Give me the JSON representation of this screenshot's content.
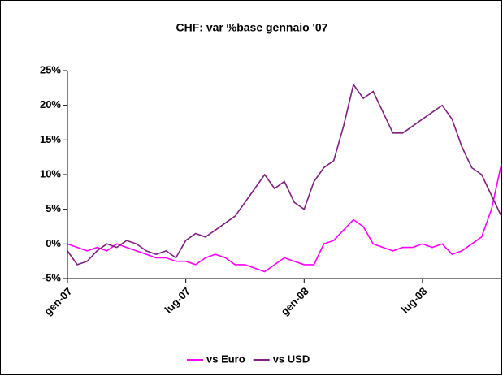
{
  "chart_data": {
    "type": "line",
    "title": "CHF: var %base gennaio '07",
    "categories": [
      "gen-07",
      null,
      null,
      null,
      null,
      null,
      null,
      null,
      null,
      null,
      null,
      null,
      "lug-07",
      null,
      null,
      null,
      null,
      null,
      null,
      null,
      null,
      null,
      null,
      null,
      "gen-08",
      null,
      null,
      null,
      null,
      null,
      null,
      null,
      null,
      null,
      null,
      null,
      "lug-08",
      null,
      null,
      null,
      null,
      null,
      null,
      null,
      null
    ],
    "series": [
      {
        "name": "vs Euro",
        "color": "#ff00ff",
        "values": [
          0,
          -0.5,
          -1,
          -0.5,
          -1,
          0,
          -0.5,
          -1,
          -1.5,
          -2,
          -2,
          -2.5,
          -2.5,
          -3,
          -2,
          -1.5,
          -2,
          -3,
          -3,
          -3.5,
          -4,
          -3,
          -2,
          -2.5,
          -3,
          -3,
          0,
          0.5,
          2,
          3.5,
          2.5,
          0,
          -0.5,
          -1,
          -0.5,
          -0.5,
          0,
          -0.5,
          0,
          -1.5,
          -1,
          0,
          1,
          5,
          11.5
        ]
      },
      {
        "name": "vs USD",
        "color": "#7f1f7f",
        "values": [
          -1,
          -3,
          -2.5,
          -1,
          0,
          -0.5,
          0.5,
          0,
          -1,
          -1.5,
          -1,
          -2,
          0.5,
          1.5,
          1,
          2,
          3,
          4,
          6,
          8,
          10,
          8,
          9,
          6,
          5,
          9,
          11,
          12,
          17,
          23,
          21,
          22,
          19,
          16,
          16,
          17,
          18,
          19,
          20,
          18,
          14,
          11,
          10,
          7,
          4
        ]
      }
    ],
    "ylim": [
      -5,
      25
    ],
    "yticks": [
      {
        "value": -5,
        "label": "-5%"
      },
      {
        "value": 0,
        "label": "0%"
      },
      {
        "value": 5,
        "label": "5%"
      },
      {
        "value": 10,
        "label": "10%"
      },
      {
        "value": 15,
        "label": "15%"
      },
      {
        "value": 20,
        "label": "20%"
      },
      {
        "value": 25,
        "label": "25%"
      }
    ],
    "legend": "bottom"
  }
}
